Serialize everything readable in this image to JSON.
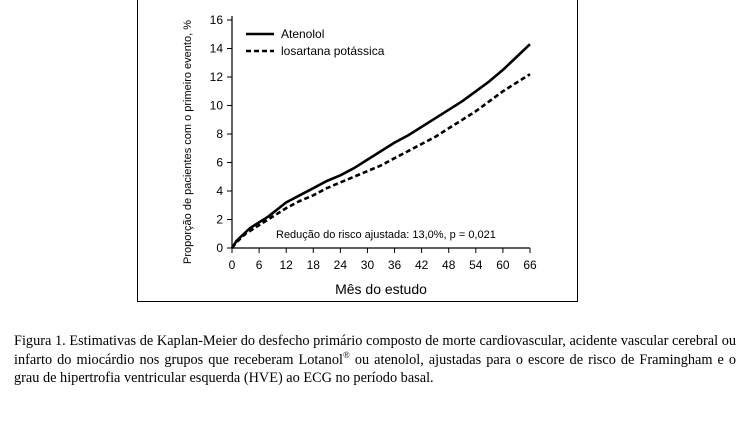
{
  "chart_data": {
    "type": "line",
    "xlabel": "Mês do estudo",
    "ylabel": "Proporção de pacientes com o primeiro evento, %",
    "xlim": [
      0,
      66
    ],
    "ylim": [
      0,
      16
    ],
    "xticks": [
      0,
      6,
      12,
      18,
      24,
      30,
      36,
      42,
      48,
      54,
      60,
      66
    ],
    "yticks": [
      0,
      2,
      4,
      6,
      8,
      10,
      12,
      14,
      16
    ],
    "legend_position": "top-left",
    "grid": false,
    "annotation": "Redução do risco ajustada: 13,0%, p = 0,021",
    "series": [
      {
        "name": "Atenolol",
        "style": "solid",
        "x": [
          0,
          1,
          2,
          3,
          4,
          6,
          8,
          10,
          12,
          15,
          18,
          21,
          24,
          27,
          30,
          33,
          36,
          39,
          42,
          45,
          48,
          51,
          54,
          57,
          60,
          63,
          66
        ],
        "y": [
          0,
          0.5,
          0.8,
          1.1,
          1.4,
          1.8,
          2.2,
          2.7,
          3.2,
          3.7,
          4.2,
          4.7,
          5.1,
          5.6,
          6.2,
          6.8,
          7.4,
          7.9,
          8.5,
          9.1,
          9.7,
          10.3,
          11.0,
          11.7,
          12.5,
          13.4,
          14.3
        ]
      },
      {
        "name": "losartana potássica",
        "style": "dashed",
        "x": [
          0,
          1,
          2,
          3,
          4,
          6,
          8,
          10,
          12,
          15,
          18,
          21,
          24,
          27,
          30,
          33,
          36,
          39,
          42,
          45,
          48,
          51,
          54,
          57,
          60,
          63,
          66
        ],
        "y": [
          0,
          0.4,
          0.7,
          1.0,
          1.2,
          1.6,
          2.0,
          2.4,
          2.8,
          3.3,
          3.7,
          4.2,
          4.6,
          5.0,
          5.4,
          5.8,
          6.3,
          6.8,
          7.3,
          7.8,
          8.4,
          9.0,
          9.6,
          10.3,
          11.0,
          11.6,
          12.2
        ]
      }
    ]
  },
  "caption": {
    "part1": "Figura 1. Estimativas de Kaplan-Meier do desfecho primário composto de morte cardiovascular, acidente vascular cerebral ou infarto do miocárdio nos grupos que receberam Lotanol",
    "reg_mark": "®",
    "part2": " ou atenolol, ajustadas para o escore de risco de Framingham e o grau de hipertrofia ventricular esquerda (HVE) ao ECG no período basal."
  }
}
